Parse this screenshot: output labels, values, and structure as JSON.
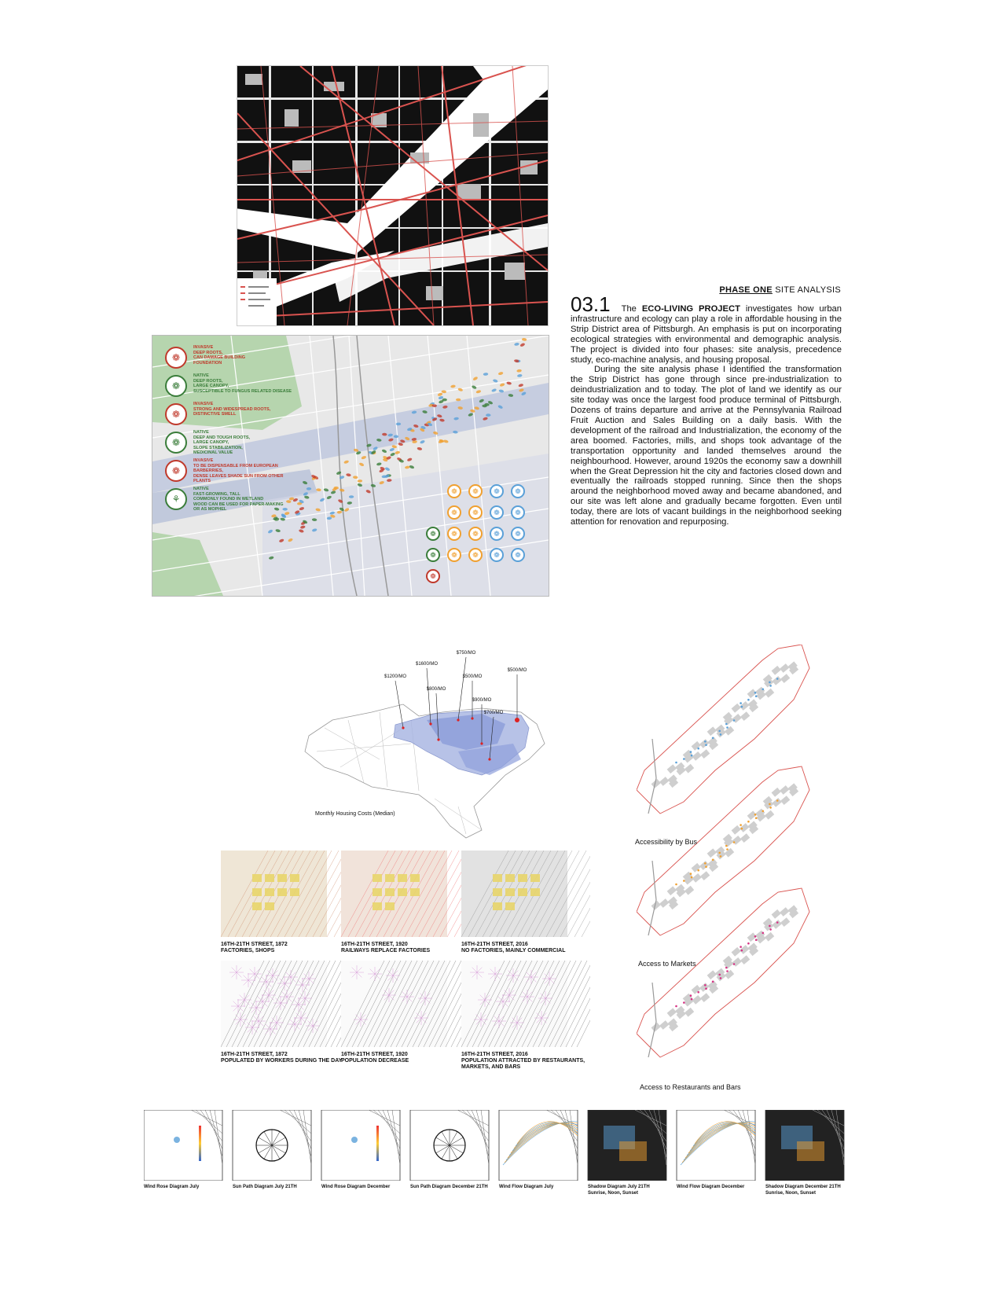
{
  "header": {
    "phase_bold": "PHASE ONE",
    "phase_rest": " SITE ANALYSIS"
  },
  "intro": {
    "number": "03.1",
    "lead": "The ",
    "project": "ECO-LIVING PROJECT",
    "p1": " investigates how urban infrastructure and ecology can play a role in affordable housing in the Strip District area of Pittsburgh. An emphasis is put on incorporating ecological strategies with environmental and demographic analysis. The project is divided into four phases: site analysis, precedence study, eco-machine analysis, and housing proposal.",
    "p2": "During the site analysis phase I identified the transformation the Strip District has gone through since pre-industrialization to deindustrialization and to today. The plot of land we identify as our site today was once the largest food produce terminal of Pittsburgh. Dozens of trains departure and arrive at the Pennsylvania Railroad Fruit Auction and Sales Building on a daily basis. With the development of the railroad and Industrialization, the economy of the area boomed. Factories, mills, and shops took advantage of the transportation opportunity and landed themselves around the neighbourhood. However, around 1920s the economy saw a downhill when the Great Depression hit the city and factories closed down and eventually the railroads stopped running. Since then the shops around the neighborhood moved away and became abandoned, and our site was left alone and gradually became forgotten. Even until today, there are lots of vacant buildings in the neighborhood seeking attention for renovation and repurposing."
  },
  "tree_legend": [
    {
      "lines": [
        "INVASIVE",
        "DEEP ROOTS,",
        "CAN DAMAGE BUILDING",
        "FOUNDATION"
      ],
      "color": "#c0392b",
      "icon": "leaf-icon"
    },
    {
      "lines": [
        "NATIVE",
        "DEEP ROOTS,",
        "LARGE CANOPY,",
        "SUSCEPTIBLE TO FUNGUS RELATED DISEASE"
      ],
      "color": "#3a7d3a",
      "icon": "leaf-icon"
    },
    {
      "lines": [
        "INVASIVE",
        "STRONG AND WIDESPREAD ROOTS,",
        "DISTINCTIVE SMELL"
      ],
      "color": "#c0392b",
      "icon": "leaf-icon"
    },
    {
      "lines": [
        "NATIVE",
        "DEEP AND TOUGH ROOTS,",
        "LARGE CANOPY,",
        "SLOPE STABILIZATION,",
        "MEDICINAL VALUE"
      ],
      "color": "#3a7d3a",
      "icon": "leaf-icon"
    },
    {
      "lines": [
        "INVASIVE",
        "TO BE DISPENSABLE FROM EUROPEAN BARBERRIES,",
        "DENSE LEAVES SHADE SUN FROM OTHER PLANTS"
      ],
      "color": "#c0392b",
      "icon": "leaf-icon"
    },
    {
      "lines": [
        "NATIVE",
        "FAST-GROWING, TALL",
        "COMMONLY FOUND IN WETLAND",
        "WOOD CAN BE USED FOR PAPER-MAKING",
        "OR AS MOPHEL"
      ],
      "color": "#3a7d3a",
      "icon": "maple-leaf-icon"
    }
  ],
  "housing_map": {
    "caption": "Monthly Housing Costs (Median)",
    "prices": [
      "$750/MO",
      "$1600/MO",
      "$500/MO",
      "$1200/MO",
      "$500/MO",
      "$800/MO",
      "$900/MO",
      "$700/MO"
    ]
  },
  "access_captions": [
    "Accessibility by Bus",
    "Access to Markets",
    "Access to Restaurants and Bars"
  ],
  "history_captions": [
    [
      "16TH-21TH STREET, 1872",
      "FACTORIES, SHOPS"
    ],
    [
      "16TH-21TH STREET, 1920",
      "RAILWAYS REPLACE FACTORIES"
    ],
    [
      "16TH-21TH STREET, 2016",
      "NO FACTORIES, MAINLY COMMERCIAL"
    ]
  ],
  "population_captions": [
    [
      "16TH-21TH STREET, 1872",
      "POPULATED BY WORKERS DURING THE DAY"
    ],
    [
      "16TH-21TH STREET, 1920",
      "POPULATION DECREASE"
    ],
    [
      "16TH-21TH STREET, 2016",
      "POPULATION ATTRACTED BY RESTAURANTS, MARKETS, AND BARS"
    ]
  ],
  "climate_captions": [
    [
      "Wind Rose Diagram July"
    ],
    [
      "Sun Path Diagram July 21TH"
    ],
    [
      "Wind Rose Diagram December"
    ],
    [
      "Sun Path Diagram December 21TH"
    ],
    [
      "Wind Flow Diagram July"
    ],
    [
      "Shadow Diagram July 21TH",
      "Sunrise, Noon, Sunset"
    ],
    [
      "Wind Flow Diagram December"
    ],
    [
      "Shadow Diagram December 21TH",
      "Sunrise, Noon, Sunset"
    ]
  ],
  "colors": {
    "road": "#d9534f",
    "block": "#111111",
    "river": "#ffffff",
    "native": "#3a7d3a",
    "invasive": "#c0392b",
    "orange": "#f0a030",
    "blue": "#5aa0d8",
    "pink": "#d63384"
  }
}
